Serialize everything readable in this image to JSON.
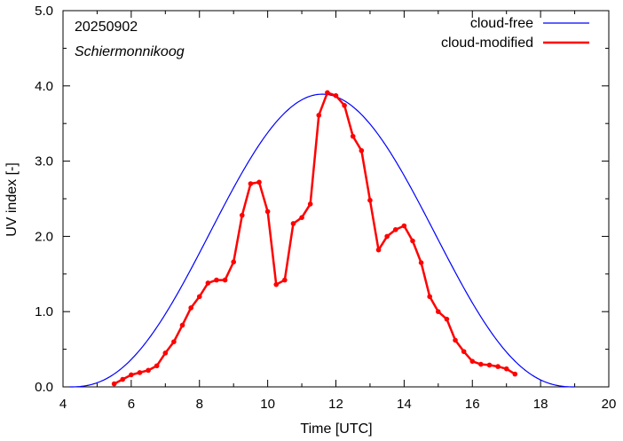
{
  "chart_data": {
    "type": "line",
    "date_label": "20250902",
    "location_label": "Schiermonnikoog",
    "xlabel": "Time  [UTC]",
    "ylabel": "UV index  [-]",
    "xlim": [
      4,
      20
    ],
    "ylim": [
      0,
      5
    ],
    "x_ticks": [
      4,
      6,
      8,
      10,
      12,
      14,
      16,
      18,
      20
    ],
    "y_ticks": [
      "0.0",
      "1.0",
      "2.0",
      "3.0",
      "4.0",
      "5.0"
    ],
    "legend_position": "top-right",
    "grid": false,
    "series": [
      {
        "name": "cloud-free",
        "color": "#0000ff",
        "style": "line",
        "model": {
          "center": 11.6,
          "peak": 3.89,
          "start": 4.2,
          "end": 19.0
        }
      },
      {
        "name": "cloud-modified",
        "color": "#ff0000",
        "style": "line-points",
        "points": [
          [
            5.5,
            0.04
          ],
          [
            5.75,
            0.1
          ],
          [
            6.0,
            0.16
          ],
          [
            6.25,
            0.19
          ],
          [
            6.5,
            0.22
          ],
          [
            6.75,
            0.28
          ],
          [
            7.0,
            0.45
          ],
          [
            7.25,
            0.6
          ],
          [
            7.5,
            0.82
          ],
          [
            7.75,
            1.05
          ],
          [
            8.0,
            1.2
          ],
          [
            8.25,
            1.38
          ],
          [
            8.5,
            1.42
          ],
          [
            8.75,
            1.42
          ],
          [
            9.0,
            1.66
          ],
          [
            9.25,
            2.28
          ],
          [
            9.5,
            2.7
          ],
          [
            9.75,
            2.72
          ],
          [
            10.0,
            2.33
          ],
          [
            10.25,
            1.36
          ],
          [
            10.5,
            1.42
          ],
          [
            10.75,
            2.17
          ],
          [
            11.0,
            2.25
          ],
          [
            11.25,
            2.43
          ],
          [
            11.5,
            3.61
          ],
          [
            11.75,
            3.91
          ],
          [
            12.0,
            3.87
          ],
          [
            12.25,
            3.74
          ],
          [
            12.5,
            3.33
          ],
          [
            12.75,
            3.14
          ],
          [
            13.0,
            2.48
          ],
          [
            13.25,
            1.82
          ],
          [
            13.5,
            2.0
          ],
          [
            13.75,
            2.09
          ],
          [
            14.0,
            2.14
          ],
          [
            14.25,
            1.94
          ],
          [
            14.5,
            1.65
          ],
          [
            14.75,
            1.2
          ],
          [
            15.0,
            1.0
          ],
          [
            15.25,
            0.9
          ],
          [
            15.5,
            0.62
          ],
          [
            15.75,
            0.47
          ],
          [
            16.0,
            0.34
          ],
          [
            16.25,
            0.3
          ],
          [
            16.5,
            0.29
          ],
          [
            16.75,
            0.27
          ],
          [
            17.0,
            0.24
          ],
          [
            17.25,
            0.17
          ]
        ]
      }
    ]
  }
}
